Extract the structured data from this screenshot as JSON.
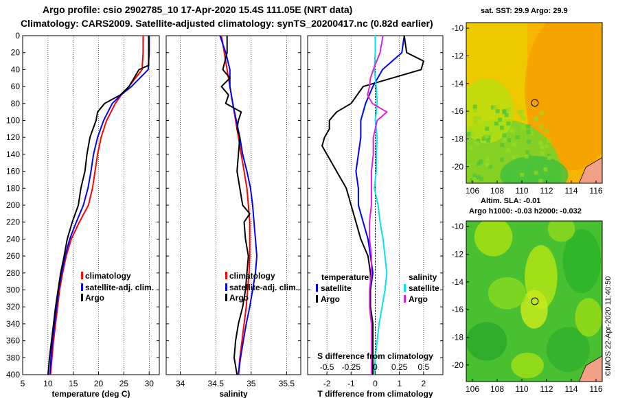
{
  "header": {
    "title_line1": "Argo profile: csio 2902785_10 17-Apr-2020 15.4S 111.05E (NRT data)",
    "title_line2": "Climatology: CARS2009. Satellite-adjusted climatology: synTS_20200417.nc (0.82d earlier)"
  },
  "maps": {
    "sst_title": "sat. SST: 29.9 Argo: 29.9",
    "sla_title_line1": "Altim. SLA: -0.01",
    "sla_title_line2": "Argo h1000: -0.03 h2000: -0.032",
    "credit": "©IMOS 22-Apr-2020 11:40:50",
    "lon_ticks": [
      "106",
      "108",
      "110",
      "112",
      "114",
      "116"
    ],
    "lat_ticks": [
      "-10",
      "-12",
      "-14",
      "-16",
      "-18",
      "-20"
    ],
    "profile_lon": 111.05,
    "profile_lat": -15.4,
    "lon_range": [
      105.5,
      116.5
    ],
    "lat_range": [
      -21.2,
      -9.6
    ]
  },
  "colors": {
    "climatology": "#ff0000",
    "satellite": "#0000ff",
    "argo": "#000000",
    "salinity_satellite": "#00e5ee",
    "salinity_argo": "#e020e0",
    "sst_map_base": "#f5a800",
    "sla_map_base": "#58c832"
  },
  "chart_data": [
    {
      "type": "line",
      "title": "",
      "xlabel": "temperature (deg C)",
      "ylabel": "",
      "xlim": [
        5,
        32
      ],
      "ylim": [
        400,
        0
      ],
      "xticks": [
        "5",
        "10",
        "15",
        "20",
        "25",
        "30"
      ],
      "yticks": [
        "0",
        "20",
        "40",
        "60",
        "80",
        "100",
        "120",
        "140",
        "160",
        "180",
        "200",
        "220",
        "240",
        "260",
        "280",
        "300",
        "320",
        "340",
        "360",
        "380",
        "400"
      ],
      "legend": [
        "climatology",
        "satellite-adj. clim.",
        "Argo"
      ],
      "legend_position": "lower-right",
      "series": [
        {
          "name": "climatology",
          "depth": [
            0,
            20,
            40,
            60,
            70,
            80,
            100,
            120,
            140,
            160,
            180,
            200,
            220,
            240,
            260,
            280,
            300,
            320,
            340,
            360,
            380,
            400
          ],
          "values": [
            28.8,
            28.8,
            28.6,
            26.0,
            24.5,
            23.3,
            21.6,
            20.5,
            19.8,
            19.3,
            18.8,
            18.0,
            16.2,
            14.6,
            13.6,
            12.9,
            12.3,
            11.9,
            11.5,
            11.1,
            10.8,
            10.5
          ]
        },
        {
          "name": "satellite-adj. clim.",
          "depth": [
            0,
            20,
            40,
            60,
            70,
            80,
            100,
            120,
            140,
            160,
            180,
            200,
            220,
            240,
            260,
            280,
            300,
            320,
            340,
            360,
            380,
            400
          ],
          "values": [
            30.0,
            30.0,
            29.8,
            26.5,
            24.4,
            22.7,
            21.0,
            19.8,
            19.0,
            18.5,
            17.9,
            17.0,
            15.6,
            14.3,
            13.4,
            12.7,
            12.1,
            11.7,
            11.3,
            10.9,
            10.6,
            10.4
          ]
        },
        {
          "name": "Argo",
          "depth": [
            0,
            20,
            35,
            40,
            60,
            70,
            80,
            90,
            100,
            110,
            120,
            140,
            160,
            180,
            200,
            220,
            240,
            260,
            280,
            300,
            320,
            340,
            360,
            380,
            400
          ],
          "values": [
            29.9,
            29.9,
            29.9,
            28.0,
            26.0,
            24.3,
            21.2,
            19.8,
            19.5,
            18.9,
            18.3,
            17.7,
            17.3,
            16.5,
            16.0,
            14.8,
            13.8,
            13.2,
            12.5,
            12.0,
            11.5,
            11.1,
            10.7,
            10.3,
            10.0
          ]
        }
      ]
    },
    {
      "type": "line",
      "title": "",
      "xlabel": "salinity",
      "ylabel": "",
      "xlim": [
        33.8,
        35.7
      ],
      "ylim": [
        400,
        0
      ],
      "xticks": [
        "34",
        "34.5",
        "35",
        "35.5"
      ],
      "legend": [
        "climatology",
        "satellite-adj. clim.",
        "Argo"
      ],
      "legend_position": "lower-right",
      "series": [
        {
          "name": "climatology",
          "depth": [
            0,
            20,
            40,
            60,
            80,
            100,
            120,
            140,
            160,
            180,
            200,
            220,
            240,
            260,
            280,
            300,
            320,
            340,
            360,
            380,
            400
          ],
          "values": [
            34.58,
            34.62,
            34.66,
            34.7,
            34.74,
            34.78,
            34.82,
            34.86,
            34.9,
            34.94,
            34.96,
            34.98,
            34.98,
            34.98,
            34.97,
            34.95,
            34.93,
            34.9,
            34.87,
            34.84,
            34.82
          ]
        },
        {
          "name": "satellite-adj. clim.",
          "depth": [
            0,
            20,
            40,
            60,
            80,
            100,
            120,
            140,
            160,
            180,
            200,
            220,
            240,
            260,
            280,
            300,
            320,
            340,
            360,
            380,
            400
          ],
          "values": [
            34.56,
            34.64,
            34.7,
            34.7,
            34.74,
            34.79,
            34.84,
            34.88,
            34.94,
            34.99,
            35.02,
            35.04,
            35.06,
            35.08,
            35.06,
            35.02,
            34.98,
            34.93,
            34.89,
            34.85,
            34.82
          ]
        },
        {
          "name": "Argo",
          "depth": [
            0,
            20,
            40,
            50,
            60,
            70,
            80,
            90,
            100,
            110,
            120,
            140,
            160,
            180,
            200,
            210,
            220,
            240,
            260,
            280,
            300,
            320,
            340,
            360,
            380,
            400
          ],
          "values": [
            34.66,
            34.66,
            34.6,
            34.7,
            34.58,
            34.68,
            34.64,
            34.86,
            34.82,
            34.8,
            34.84,
            34.82,
            34.8,
            34.84,
            34.88,
            34.98,
            34.9,
            34.92,
            34.96,
            34.94,
            34.92,
            34.88,
            34.82,
            34.78,
            34.76,
            34.8
          ]
        }
      ]
    },
    {
      "type": "line",
      "title": "",
      "xlabel": "T difference from climatology",
      "xlabel_top": "S difference from climatology",
      "ylabel": "",
      "xlim": [
        -2.8,
        2.8
      ],
      "ylim": [
        400,
        0
      ],
      "xticks": [
        "-2",
        "-1",
        "0",
        "1",
        "2"
      ],
      "xticks_top": [
        "-0.5",
        "-0.25",
        "0",
        "0.25",
        "0.5"
      ],
      "legend_groups": {
        "temperature": [
          "satellite",
          "Argo"
        ],
        "salinity": [
          "satellite",
          "Argo"
        ]
      },
      "legend_temperature_title": "temperature",
      "legend_salinity_title": "salinity",
      "legend_satellite": "satellite",
      "legend_argo": "Argo",
      "series": [
        {
          "name": "temperature satellite",
          "depth": [
            0,
            20,
            40,
            60,
            80,
            100,
            120,
            140,
            160,
            180,
            200,
            220,
            240,
            260,
            280,
            300,
            320,
            340,
            360,
            380,
            400
          ],
          "values": [
            1.2,
            1.1,
            0.3,
            -0.1,
            -0.4,
            -0.6,
            -0.6,
            -0.7,
            -0.8,
            -0.7,
            -0.7,
            -0.5,
            -0.3,
            -0.2,
            -0.1,
            -0.2,
            -0.2,
            -0.1,
            -0.1,
            -0.1,
            -0.1
          ]
        },
        {
          "name": "temperature Argo",
          "depth": [
            0,
            20,
            30,
            40,
            60,
            80,
            90,
            100,
            110,
            120,
            130,
            140,
            160,
            180,
            200,
            220,
            240,
            260,
            280,
            300,
            320,
            340,
            360,
            380,
            400
          ],
          "values": [
            1.2,
            1.3,
            2.0,
            1.9,
            -0.5,
            -1.0,
            -1.6,
            -1.9,
            -1.9,
            -2.1,
            -2.2,
            -2.0,
            -1.6,
            -1.2,
            -1.0,
            -0.8,
            -0.6,
            -0.3,
            -0.2,
            -0.2,
            -0.2,
            -0.1,
            -0.1,
            -0.1,
            -0.1
          ]
        },
        {
          "name": "salinity satellite",
          "depth": [
            0,
            20,
            40,
            60,
            80,
            100,
            120,
            140,
            160,
            180,
            200,
            220,
            240,
            260,
            280,
            300,
            320,
            340,
            360,
            380,
            400
          ],
          "values": [
            0.0,
            0.0,
            -0.01,
            0.01,
            0.02,
            0.0,
            0.02,
            0.01,
            0.01,
            -0.01,
            0.03,
            0.05,
            0.08,
            0.1,
            0.12,
            0.1,
            0.07,
            0.04,
            0.02,
            0.0,
            -0.01
          ]
        },
        {
          "name": "salinity Argo",
          "depth": [
            0,
            20,
            40,
            50,
            60,
            70,
            80,
            90,
            100,
            120,
            140,
            160,
            180,
            200,
            220,
            240,
            260,
            280,
            300,
            320,
            340,
            360,
            380,
            400
          ],
          "values": [
            0.08,
            0.05,
            -0.02,
            -0.05,
            -0.06,
            -0.08,
            -0.03,
            0.12,
            0.02,
            -0.02,
            -0.02,
            -0.04,
            -0.04,
            -0.04,
            -0.06,
            -0.06,
            -0.04,
            -0.04,
            -0.06,
            -0.06,
            -0.04,
            -0.04,
            -0.04,
            -0.04
          ]
        }
      ]
    }
  ]
}
